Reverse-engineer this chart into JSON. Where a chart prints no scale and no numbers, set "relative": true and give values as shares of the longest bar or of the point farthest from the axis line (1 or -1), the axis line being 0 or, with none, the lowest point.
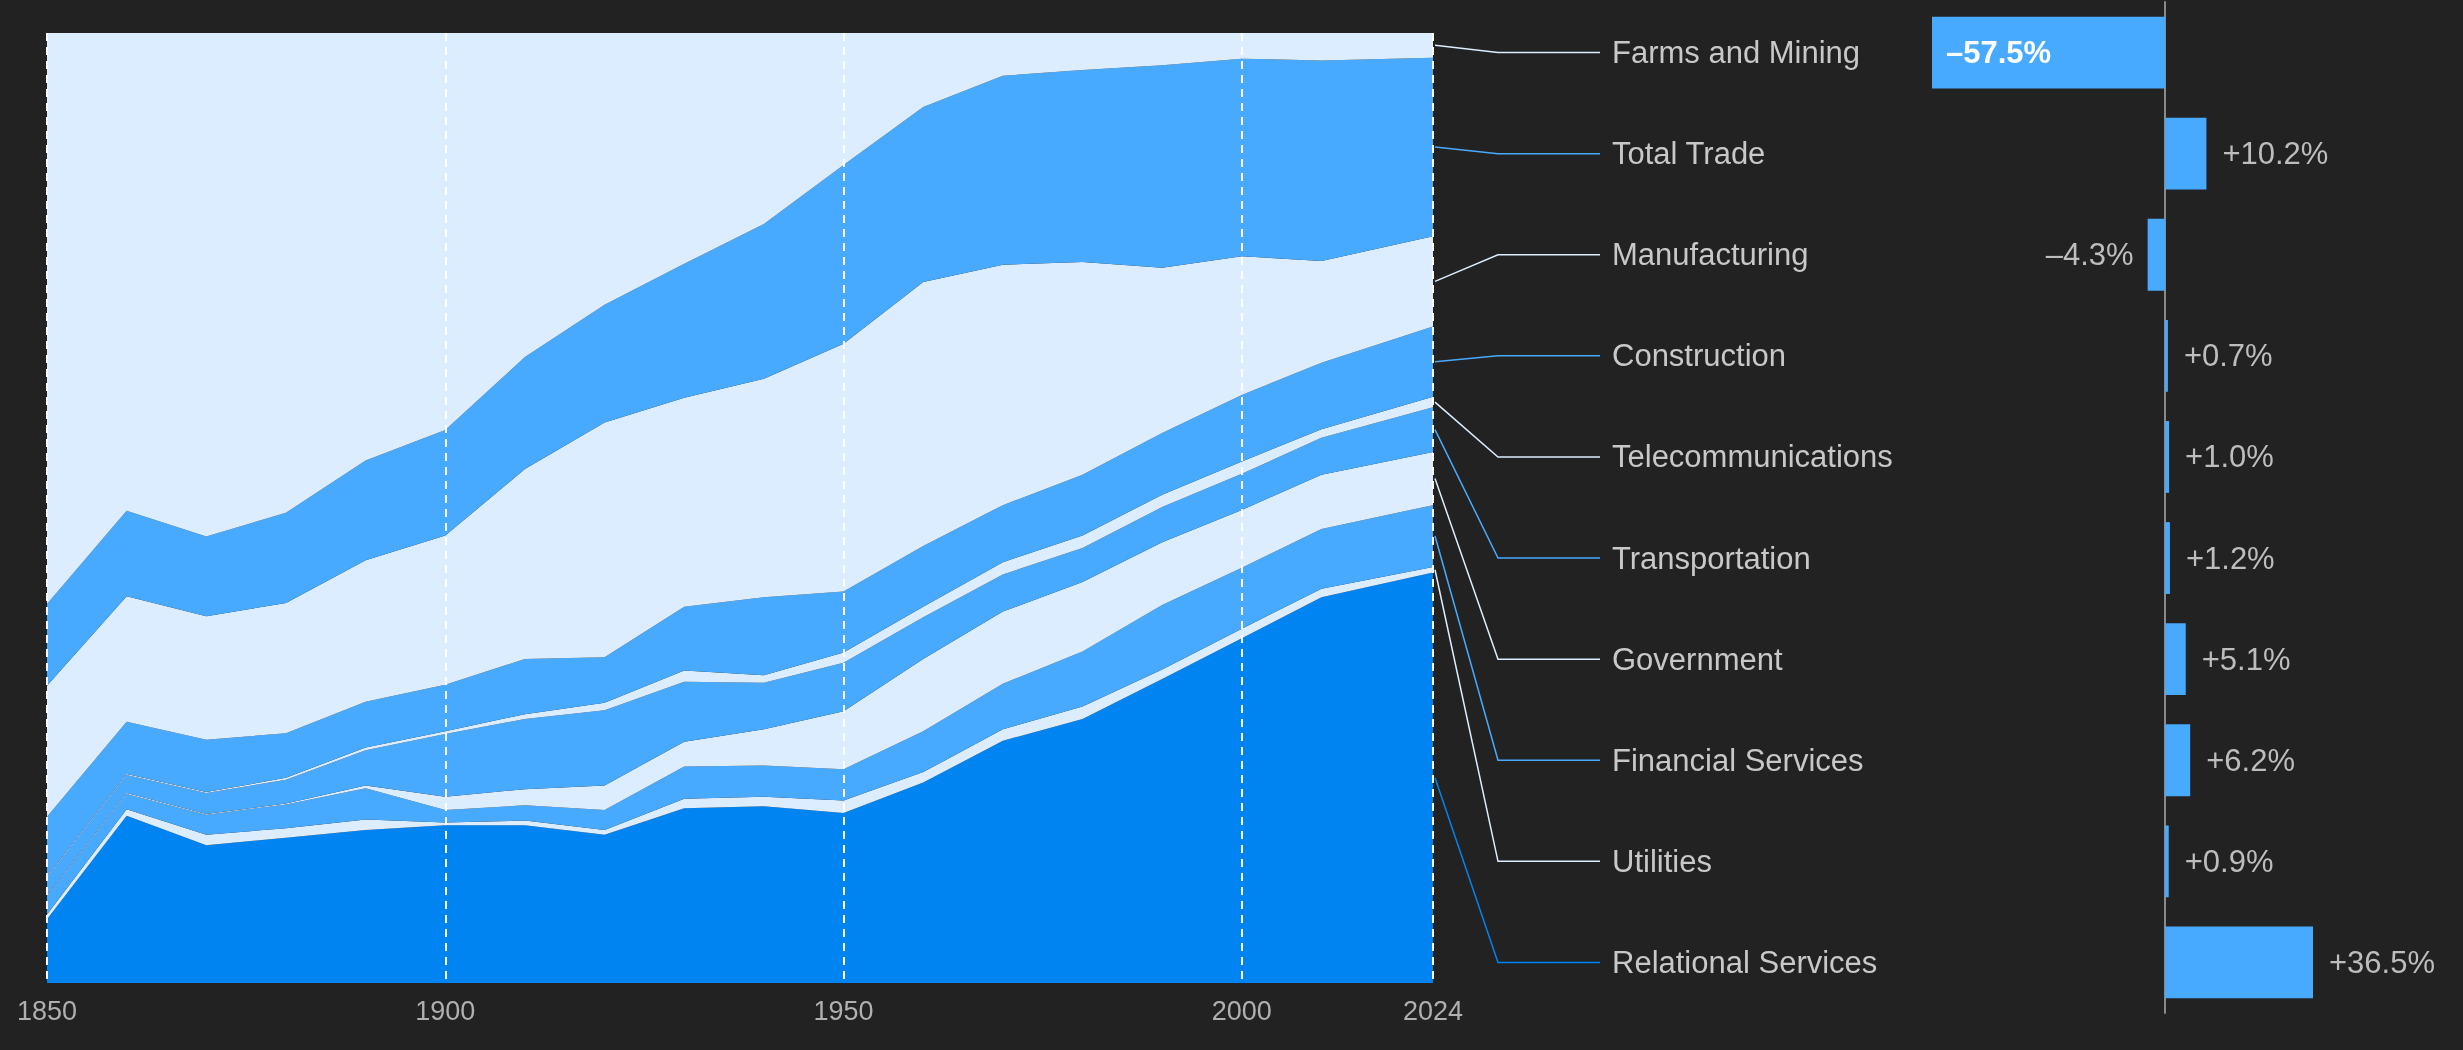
{
  "chart_data": [
    {
      "type": "area",
      "stacked": true,
      "relative": true,
      "grid": "x",
      "tick_labels": "x",
      "xlim": [
        1850,
        2024
      ],
      "xticks": [
        1850,
        1900,
        1950,
        2000,
        2024
      ],
      "x": [
        1850,
        1860,
        1870,
        1880,
        1890,
        1900,
        1910,
        1920,
        1930,
        1940,
        1950,
        1960,
        1970,
        1980,
        1990,
        2000,
        2010,
        2024
      ],
      "series": [
        {
          "color": "#0084f2",
          "values": [
            0.067,
            0.176,
            0.145,
            0.153,
            0.161,
            0.166,
            0.166,
            0.156,
            0.184,
            0.186,
            0.179,
            0.211,
            0.255,
            0.278,
            0.32,
            0.363,
            0.406,
            0.432
          ]
        },
        {
          "color": "#dbedff",
          "values": [
            0.005,
            0.007,
            0.011,
            0.01,
            0.011,
            0.003,
            0.005,
            0.005,
            0.01,
            0.01,
            0.013,
            0.011,
            0.012,
            0.013,
            0.01,
            0.01,
            0.009,
            0.006
          ]
        },
        {
          "color": "#48aaff",
          "values": [
            0.02,
            0.016,
            0.021,
            0.025,
            0.033,
            0.013,
            0.016,
            0.021,
            0.034,
            0.033,
            0.033,
            0.043,
            0.048,
            0.058,
            0.068,
            0.064,
            0.063,
            0.065
          ]
        },
        {
          "color": "#dbedff",
          "values": [
            0.001,
            0.001,
            0.001,
            0.001,
            0.003,
            0.014,
            0.017,
            0.026,
            0.026,
            0.038,
            0.061,
            0.076,
            0.076,
            0.073,
            0.066,
            0.061,
            0.057,
            0.056
          ]
        },
        {
          "color": "#48aaff",
          "values": [
            0.018,
            0.019,
            0.022,
            0.025,
            0.037,
            0.066,
            0.074,
            0.079,
            0.063,
            0.049,
            0.051,
            0.044,
            0.039,
            0.036,
            0.037,
            0.038,
            0.039,
            0.047
          ]
        },
        {
          "color": "#dbedff",
          "values": [
            0.001,
            0.001,
            0.001,
            0.002,
            0.003,
            0.003,
            0.005,
            0.008,
            0.012,
            0.008,
            0.011,
            0.011,
            0.013,
            0.013,
            0.013,
            0.013,
            0.009,
            0.011
          ]
        },
        {
          "color": "#48aaff",
          "values": [
            0.063,
            0.055,
            0.055,
            0.047,
            0.048,
            0.049,
            0.058,
            0.048,
            0.067,
            0.082,
            0.064,
            0.064,
            0.06,
            0.064,
            0.065,
            0.07,
            0.07,
            0.074
          ]
        },
        {
          "color": "#dbedff",
          "values": [
            0.138,
            0.132,
            0.13,
            0.137,
            0.149,
            0.157,
            0.2,
            0.247,
            0.22,
            0.23,
            0.261,
            0.278,
            0.253,
            0.224,
            0.174,
            0.146,
            0.107,
            0.095
          ]
        },
        {
          "color": "#48aaff",
          "values": [
            0.086,
            0.09,
            0.084,
            0.095,
            0.105,
            0.111,
            0.118,
            0.124,
            0.141,
            0.163,
            0.188,
            0.184,
            0.199,
            0.202,
            0.213,
            0.208,
            0.211,
            0.188
          ]
        },
        {
          "color": "#dbedff",
          "values": [
            0.601,
            0.503,
            0.53,
            0.505,
            0.45,
            0.418,
            0.341,
            0.286,
            0.243,
            0.201,
            0.139,
            0.078,
            0.045,
            0.039,
            0.034,
            0.027,
            0.029,
            0.026
          ]
        }
      ]
    },
    {
      "type": "bar",
      "orientation": "horizontal",
      "tick_labels": "y",
      "color": "#48aaff",
      "categories": [
        "Farms and Mining",
        "Total Trade",
        "Manufacturing",
        "Construction",
        "Telecommunications",
        "Transportation",
        "Government",
        "Financial Services",
        "Utilities",
        "Relational Services"
      ],
      "values": [
        -57.5,
        10.2,
        -4.3,
        0.7,
        1.0,
        1.2,
        5.1,
        6.2,
        0.9,
        36.5
      ],
      "value_labels": [
        "–57.5%",
        "+10.2%",
        "–4.3%",
        "+0.7%",
        "+1.0%",
        "+1.2%",
        "+5.1%",
        "+6.2%",
        "+0.9%",
        "+36.5%"
      ]
    }
  ]
}
